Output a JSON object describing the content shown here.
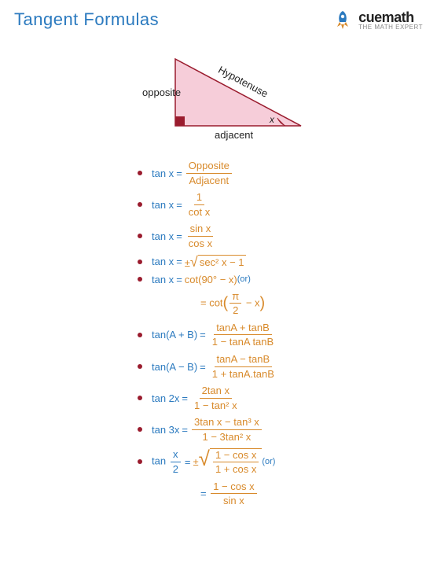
{
  "title": "Tangent Formulas",
  "brand": "cuemath",
  "tagline": "THE MATH EXPERT",
  "colors": {
    "title": "#2b7abf",
    "blue": "#2b7abf",
    "orange": "#d88a2b",
    "bullet": "#9a1c2e",
    "triangle_fill": "#f6cdd9",
    "triangle_stroke": "#9a1c2e",
    "text": "#222222",
    "rocket": "#2b7abf"
  },
  "triangle": {
    "labels": {
      "opposite": "opposite",
      "hypotenuse": "Hypotenuse",
      "adjacent": "adjacent",
      "angle": "x"
    }
  },
  "formulas": [
    {
      "lhs": "tan x",
      "rhs_type": "frac",
      "num": "Opposite",
      "den": "Adjacent"
    },
    {
      "lhs": "tan x",
      "rhs_type": "frac",
      "num": "1",
      "den": "cot x"
    },
    {
      "lhs": "tan x",
      "rhs_type": "frac",
      "num": "sin x",
      "den": "cos x"
    },
    {
      "lhs": "tan x",
      "rhs_type": "sqrt",
      "body": "sec² x − 1",
      "prefix": "±"
    },
    {
      "lhs": "tan x",
      "rhs_type": "plain",
      "text": "cot(90° − x)",
      "suffix": "(or)"
    },
    {
      "lhs": "",
      "rhs_type": "plain_paren",
      "prefix": "= cot",
      "inner_num": "π",
      "inner_den": "2",
      "inner_after": " − x",
      "indent": true
    },
    {
      "lhs": "tan(A + B)",
      "rhs_type": "frac",
      "num": "tanA + tanB",
      "den": "1 − tanA tanB"
    },
    {
      "lhs": "tan(A − B)",
      "rhs_type": "frac",
      "num": "tanA − tanB",
      "den": "1 + tanA.tanB"
    },
    {
      "lhs": "tan 2x",
      "rhs_type": "frac",
      "num": "2tan x",
      "den": "1 − tan² x"
    },
    {
      "lhs": "tan 3x",
      "rhs_type": "frac",
      "num": "3tan x − tan³ x",
      "den": "1 − 3tan² x"
    },
    {
      "lhs_frac": true,
      "lhs": "tan",
      "lhs_num": "x",
      "lhs_den": "2",
      "rhs_type": "sqrt_frac",
      "prefix": "±",
      "num": "1 − cos x",
      "den": "1 + cos x",
      "suffix": "(or)"
    },
    {
      "lhs": "",
      "rhs_type": "frac",
      "num": "1 − cos x",
      "den": "sin x",
      "indent": true,
      "eq_prefix": "="
    }
  ]
}
